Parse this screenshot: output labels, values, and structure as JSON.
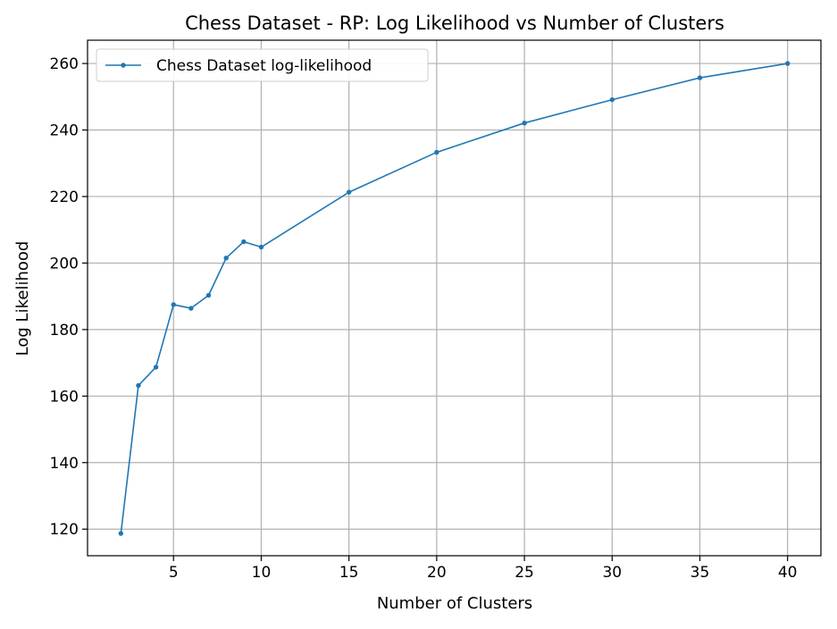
{
  "chart_data": {
    "type": "line",
    "title": "Chess Dataset - RP: Log Likelihood vs Number of Clusters",
    "xlabel": "Number of Clusters",
    "ylabel": "Log Likelihood",
    "xlim": [
      0.1,
      41.9
    ],
    "ylim": [
      112,
      267
    ],
    "xticks": [
      5,
      10,
      15,
      20,
      25,
      30,
      35,
      40
    ],
    "yticks": [
      120,
      140,
      160,
      180,
      200,
      220,
      240,
      260
    ],
    "grid": true,
    "legend_position": "top-left",
    "series": [
      {
        "name": "Chess Dataset log-likelihood",
        "color": "#1f77b4",
        "marker": "circle",
        "x": [
          2,
          3,
          4,
          5,
          6,
          7,
          8,
          9,
          10,
          15,
          20,
          25,
          30,
          35,
          40
        ],
        "y": [
          118.7,
          163.2,
          168.7,
          187.5,
          186.4,
          190.3,
          201.5,
          206.4,
          204.8,
          221.3,
          233.3,
          242.1,
          249.1,
          255.7,
          260.0
        ]
      }
    ]
  }
}
